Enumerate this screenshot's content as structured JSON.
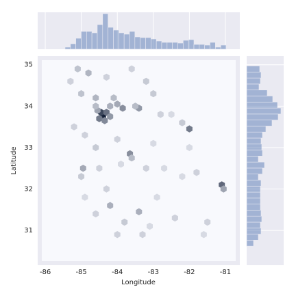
{
  "chart_data": {
    "type": "jointplot-hexbin",
    "xlabel": "Longitude",
    "ylabel": "Latitude",
    "xlim": [
      -86.21,
      -80.6
    ],
    "ylim": [
      30.16,
      35.21
    ],
    "xticks": [
      -86,
      -85,
      -84,
      -83,
      -82,
      -81
    ],
    "yticks": [
      31,
      32,
      33,
      34,
      35
    ],
    "color": "#4c72b0",
    "x": [
      -84.4,
      -84.45,
      -84.3,
      -84.5,
      -84.35,
      -84.2,
      -84.55,
      -83.85,
      -83.4,
      -82,
      -81.1,
      -81.05,
      -83.65,
      -84.95,
      -84.2,
      -83.4,
      -83.6,
      -84.8,
      -85.1,
      -84.6,
      -84.1,
      -84.0,
      -84.6,
      -84.2,
      -85.0,
      -83.5,
      -83.2,
      -83.0,
      -82.8,
      -82.2,
      -83.2,
      -84.5,
      -85.0,
      -84.3,
      -83.8,
      -84.0,
      -83.3,
      -82.4,
      -81.5,
      -81.8,
      -82.2,
      -84.9,
      -84.6,
      -83.9,
      -82.7,
      -82.0,
      -85.2,
      -84.0,
      -83.0,
      -82.5,
      -85.3,
      -83.6,
      -84.3,
      -84.9,
      -84.6,
      -82.9,
      -81.6,
      -83.1
    ],
    "y": [
      33.75,
      33.85,
      33.85,
      33.7,
      33.65,
      33.75,
      33.9,
      33.95,
      33.95,
      33.45,
      32.1,
      32.0,
      32.85,
      32.5,
      31.6,
      31.45,
      32.75,
      34.8,
      34.9,
      34.2,
      34.2,
      34.05,
      34.0,
      34.0,
      34.3,
      34.0,
      34.6,
      34.3,
      33.8,
      33.6,
      32.5,
      32.5,
      32.3,
      32.0,
      31.2,
      30.9,
      30.9,
      31.3,
      31.2,
      32.4,
      32.3,
      33.3,
      33.0,
      32.6,
      32.5,
      33.0,
      33.5,
      33.2,
      33.1,
      33.8,
      34.6,
      34.9,
      34.7,
      31.8,
      31.4,
      31.8,
      30.9,
      31.1
    ],
    "values": [
      40,
      30,
      20,
      18,
      15,
      12,
      10,
      14,
      12,
      18,
      22,
      10,
      14,
      9,
      8,
      8,
      6,
      7,
      5,
      7,
      6,
      9,
      6,
      8,
      5,
      6,
      4,
      4,
      3,
      4,
      3,
      3,
      4,
      3,
      4,
      3,
      3,
      3,
      3,
      3,
      2,
      3,
      4,
      2,
      2,
      2,
      3,
      3,
      2,
      2,
      3,
      3,
      3,
      2,
      3,
      2,
      2,
      2
    ],
    "marginal_x": {
      "bins": [
        -85.45,
        -85.301,
        -85.152,
        -85.003,
        -84.854,
        -84.705,
        -84.556,
        -84.407,
        -84.258,
        -84.109,
        -83.96,
        -83.811,
        -83.662,
        -83.513,
        -83.364,
        -83.215,
        -83.066,
        -82.917,
        -82.768,
        -82.619,
        -82.47,
        -82.321,
        -82.172,
        -82.023,
        -81.874,
        -81.725,
        -81.576,
        -81.427,
        -81.278,
        -81.129,
        -80.98
      ],
      "values": [
        3,
        8,
        16,
        26,
        26,
        24,
        36,
        52,
        32,
        28,
        24,
        22,
        26,
        18,
        17,
        17,
        15,
        12,
        10,
        10,
        10,
        9,
        13,
        14,
        7,
        7,
        6,
        10,
        3,
        6
      ],
      "lim": [
        0,
        54
      ]
    },
    "marginal_y": {
      "bins": [
        30.62,
        30.765,
        30.91,
        31.055,
        31.2,
        31.345,
        31.49,
        31.635,
        31.78,
        31.925,
        32.07,
        32.215,
        32.36,
        32.505,
        32.65,
        32.795,
        32.94,
        33.085,
        33.23,
        33.375,
        33.52,
        33.665,
        33.81,
        33.955,
        34.1,
        34.245,
        34.39,
        34.535,
        34.68,
        34.825,
        34.97
      ],
      "values": [
        10,
        17,
        21,
        20,
        22,
        21,
        20,
        20,
        20,
        20,
        21,
        17,
        23,
        26,
        17,
        23,
        22,
        21,
        23,
        28,
        37,
        46,
        50,
        45,
        38,
        30,
        18,
        20,
        21,
        19
      ],
      "lim": [
        0,
        54
      ]
    }
  }
}
